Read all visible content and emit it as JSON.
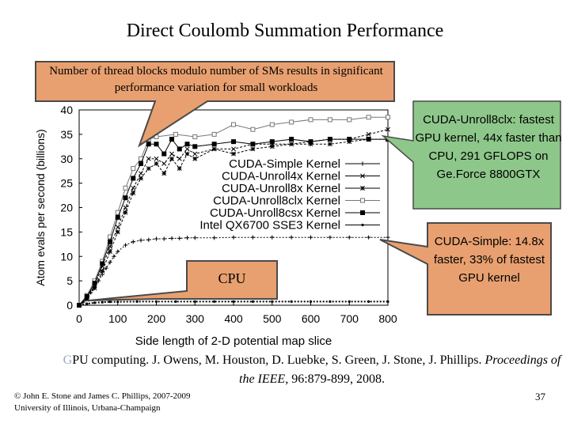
{
  "slide": {
    "title": "Direct Coulomb Summation Performance",
    "callout_top": "Number of thread blocks modulo number of SMs results in significant performance variation for small workloads",
    "callout_unroll8csx": "CUDA-Unroll8clx: fastest GPU kernel, 44x faster than CPU, 291 GFLOPS on Ge.Force 8800GTX",
    "callout_simple": "CUDA-Simple: 14.8x faster, 33% of fastest GPU kernel",
    "callout_cpu": "CPU",
    "citation_first_letter": "G",
    "citation_rest": "PU computing.  J. Owens, M. Houston, D. Luebke, S. Green, J. Stone, J. Phillips. ",
    "citation_journal": "Proceedings of the IEEE",
    "citation_end": ", 96:879-899, 2008.",
    "copyright_line1": "© John E. Stone and James C. Phillips, 2007-2009",
    "copyright_line2": "University of Illinois, Urbana-Champaign",
    "page_number": "37"
  },
  "colors": {
    "callout_fill": "#e8a070",
    "callout_stroke": "#4a4a4a",
    "green_box": "#8ec78a",
    "axis": "#000000",
    "series_dark": "#000000",
    "series_gray": "#777777"
  },
  "chart_data": {
    "type": "line",
    "xlabel": "Side length of 2-D potential map slice",
    "ylabel": "Atom evals per second (billions)",
    "xlim": [
      0,
      800
    ],
    "ylim": [
      0,
      40
    ],
    "xticks": [
      0,
      100,
      200,
      300,
      400,
      500,
      600,
      700,
      800
    ],
    "yticks": [
      0,
      5,
      10,
      15,
      20,
      25,
      30,
      35,
      40
    ],
    "legend_position": "inside-right",
    "series": [
      {
        "name": "CUDA-Simple Kernel",
        "marker": "plus",
        "color": "#000000",
        "x": [
          0,
          10,
          20,
          30,
          40,
          50,
          60,
          70,
          80,
          90,
          100,
          120,
          140,
          160,
          180,
          200,
          220,
          240,
          260,
          280,
          300,
          350,
          400,
          450,
          500,
          550,
          600,
          650,
          700,
          750,
          800
        ],
        "y": [
          0,
          0.6,
          1.5,
          2.6,
          3.8,
          5,
          6.3,
          7.6,
          8.8,
          10,
          11,
          12.3,
          13,
          13.3,
          13.4,
          13.6,
          13.6,
          13.7,
          13.7,
          13.8,
          13.8,
          13.8,
          13.9,
          13.9,
          13.9,
          13.9,
          13.9,
          13.9,
          13.9,
          13.9,
          13.9
        ]
      },
      {
        "name": "CUDA-Unroll4x Kernel",
        "marker": "x",
        "color": "#000000",
        "x": [
          0,
          20,
          40,
          60,
          80,
          100,
          120,
          140,
          160,
          180,
          200,
          220,
          240,
          260,
          280,
          300,
          350,
          400,
          450,
          500,
          550,
          600,
          650,
          700,
          750,
          800
        ],
        "y": [
          0,
          1.5,
          4,
          8,
          12,
          16,
          20,
          24,
          27,
          30,
          30,
          29,
          31,
          30,
          32,
          31,
          32,
          32,
          33,
          33,
          33,
          33.5,
          34,
          34,
          35,
          36
        ]
      },
      {
        "name": "CUDA-Unroll8x Kernel",
        "marker": "star",
        "color": "#000000",
        "x": [
          0,
          20,
          40,
          60,
          80,
          100,
          120,
          140,
          160,
          180,
          200,
          220,
          240,
          260,
          280,
          300,
          350,
          400,
          450,
          500,
          550,
          600,
          650,
          700,
          750,
          800
        ],
        "y": [
          0,
          1.2,
          3.5,
          7,
          11,
          15,
          19,
          23,
          26,
          28,
          29,
          27,
          30,
          28,
          31,
          30,
          32,
          31,
          32,
          32.5,
          33,
          33,
          33,
          33.5,
          34,
          34
        ]
      },
      {
        "name": "CUDA-Unroll8clx Kernel",
        "marker": "square-open",
        "color": "#777777",
        "x": [
          0,
          20,
          40,
          60,
          80,
          100,
          120,
          140,
          160,
          180,
          200,
          250,
          300,
          350,
          400,
          450,
          500,
          550,
          600,
          650,
          700,
          750,
          800
        ],
        "y": [
          0,
          2,
          5,
          9,
          14,
          19,
          24,
          28,
          30,
          34,
          34.5,
          35,
          34.5,
          35,
          37,
          36,
          37,
          37.5,
          38,
          38,
          38,
          38.5,
          38.5
        ]
      },
      {
        "name": "CUDA-Unroll8csx Kernel",
        "marker": "square-filled",
        "color": "#000000",
        "x": [
          0,
          20,
          40,
          60,
          80,
          100,
          120,
          140,
          160,
          180,
          200,
          220,
          240,
          260,
          280,
          300,
          350,
          400,
          450,
          500,
          550,
          600,
          650,
          700,
          750,
          800
        ],
        "y": [
          0,
          1.8,
          4.5,
          8.5,
          13,
          18,
          22,
          26,
          29,
          33,
          33,
          31,
          34,
          32,
          33,
          32.5,
          33,
          33.5,
          33,
          33.5,
          34,
          33.5,
          34,
          34,
          34,
          34
        ]
      },
      {
        "name": "Intel QX6700 SSE3 Kernel",
        "marker": "dot",
        "color": "#000000",
        "x": [
          0,
          20,
          40,
          60,
          80,
          100,
          150,
          200,
          250,
          300,
          350,
          400,
          450,
          500,
          550,
          600,
          650,
          700,
          750,
          800
        ],
        "y": [
          0,
          0.3,
          0.5,
          0.6,
          0.7,
          0.7,
          0.75,
          0.75,
          0.75,
          0.75,
          0.75,
          0.75,
          0.75,
          0.75,
          0.75,
          0.75,
          0.75,
          0.75,
          0.75,
          0.75
        ]
      }
    ]
  }
}
